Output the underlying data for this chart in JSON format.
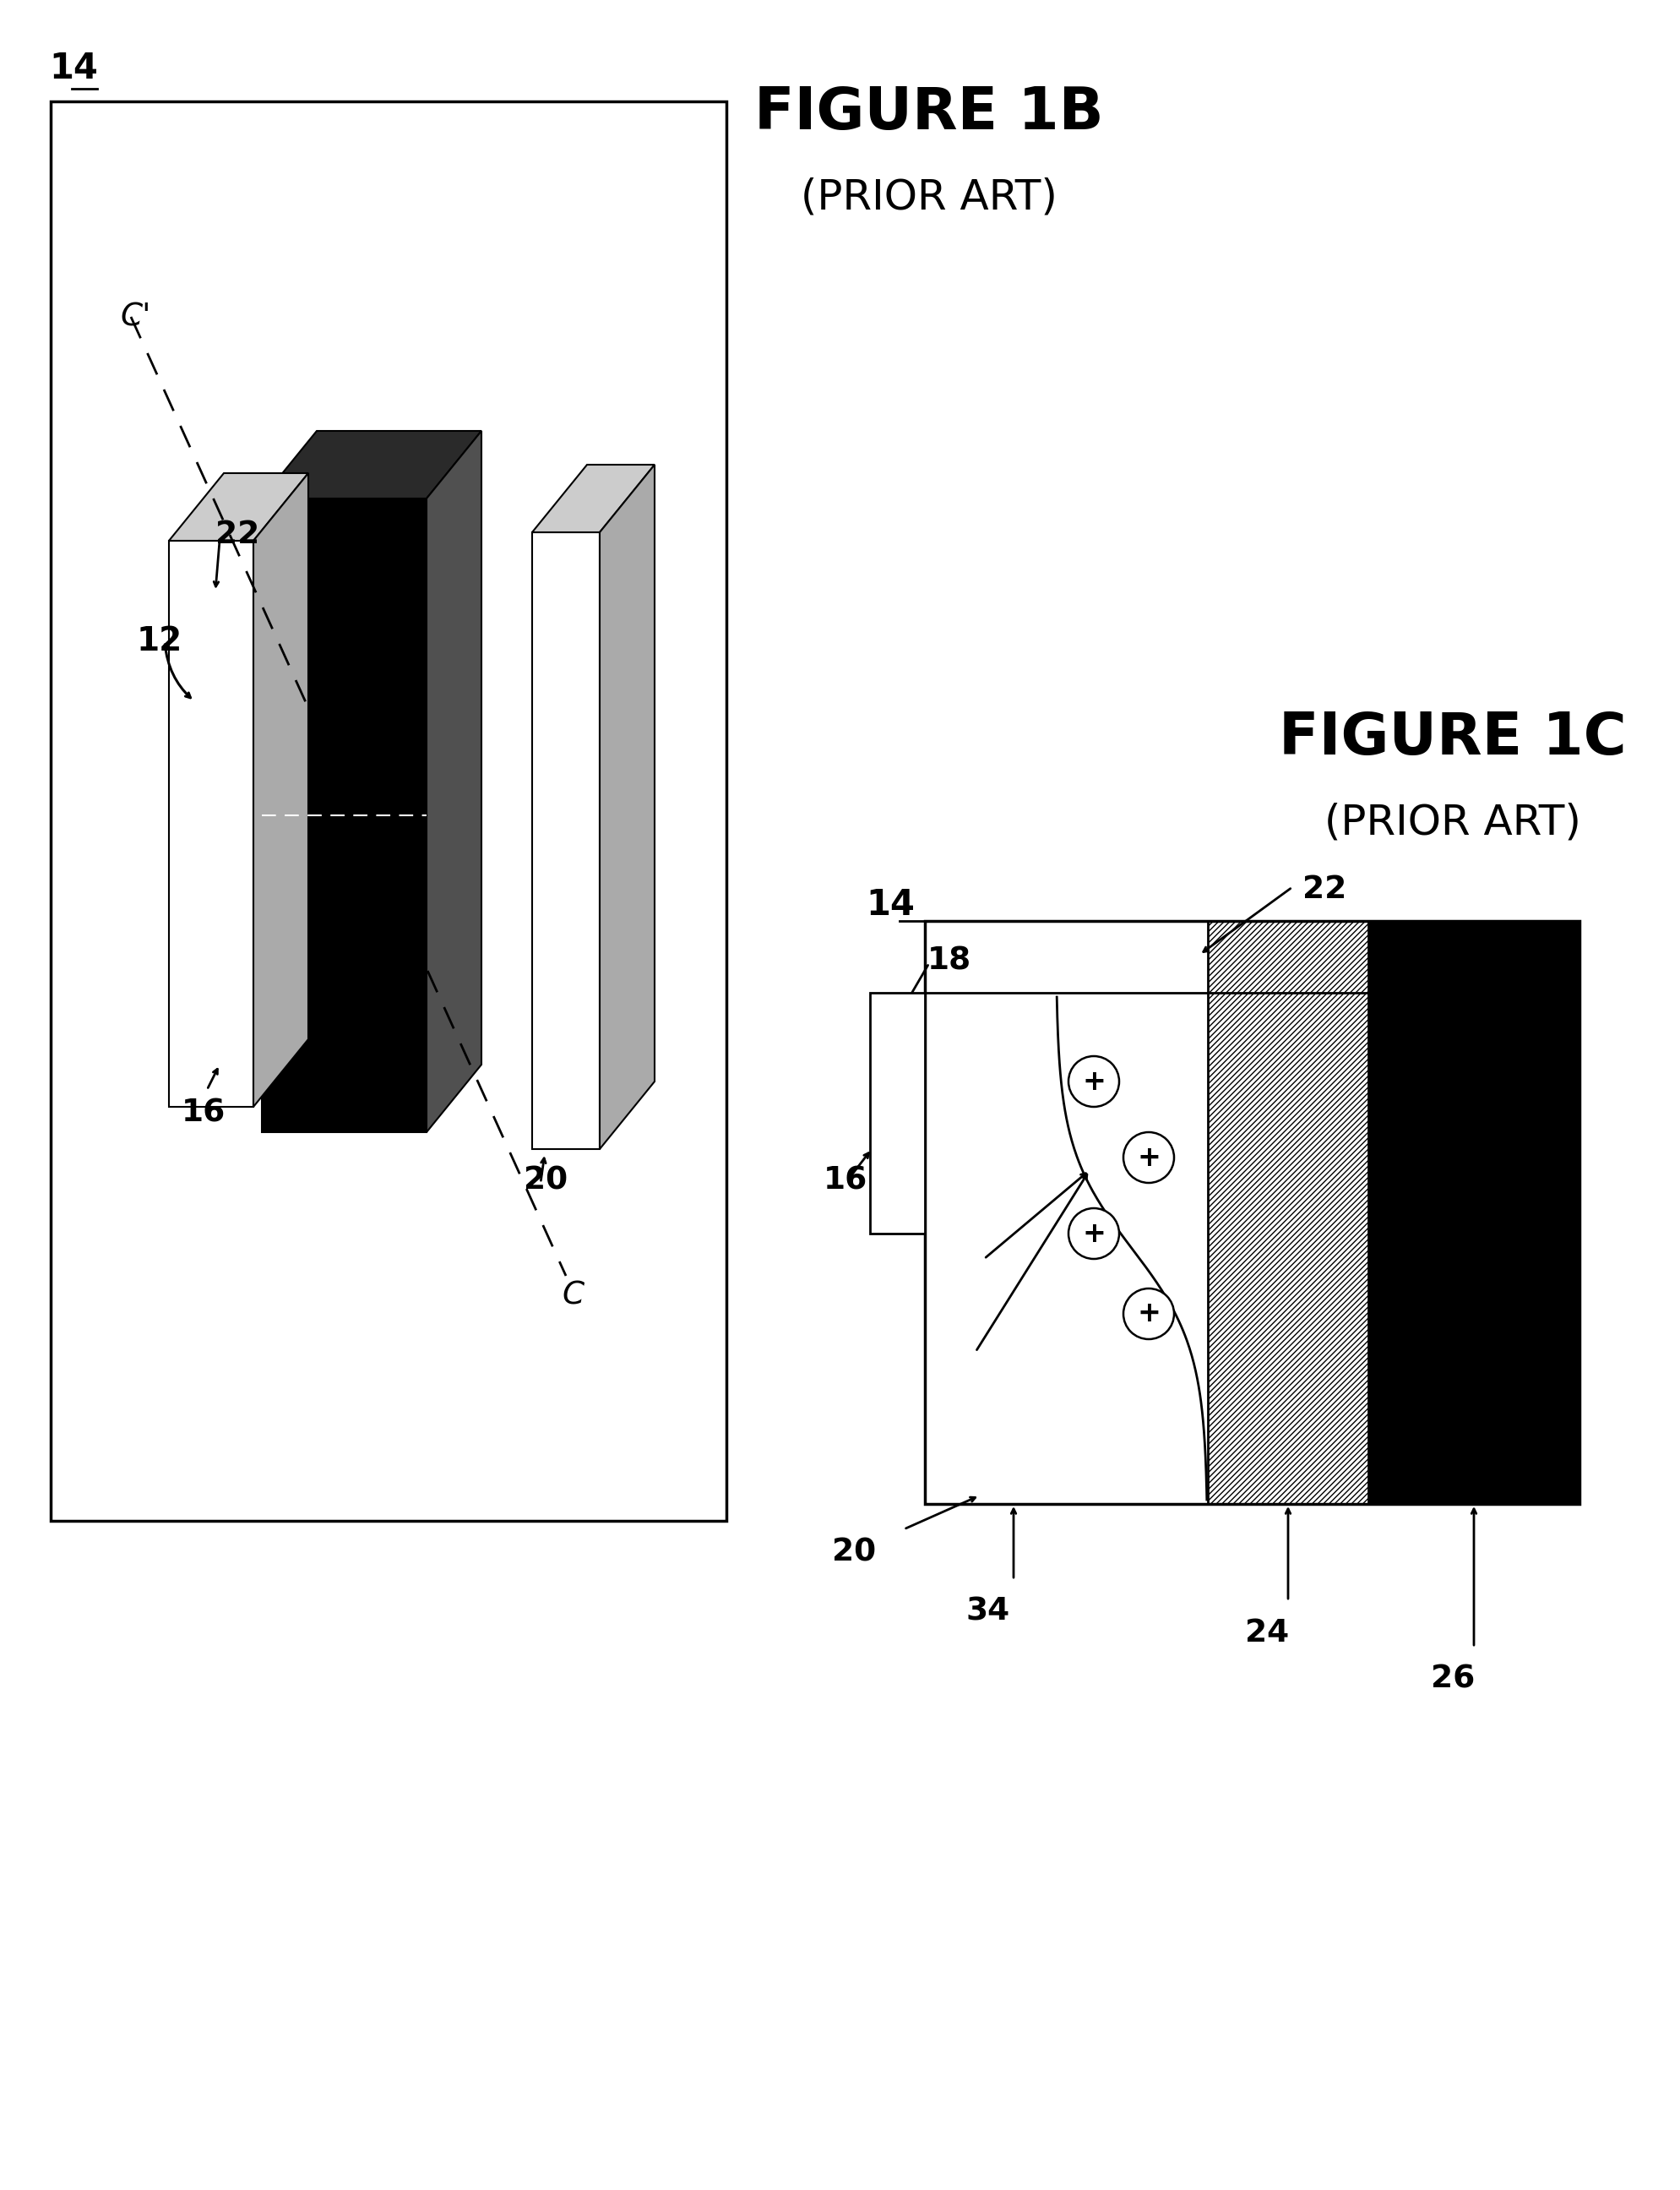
{
  "title_1b": "FIGURE 1B",
  "subtitle_1b": "(PRIOR ART)",
  "title_1c": "FIGURE 1C",
  "subtitle_1c": "(PRIOR ART)",
  "bg_color": "#ffffff",
  "label_14_top": "14",
  "label_12": "12",
  "label_22_3d": "22",
  "label_20_3d": "20",
  "label_16_3d": "16",
  "label_C": "C",
  "label_Cprime": "C'",
  "label_14_cross": "14",
  "label_18": "18",
  "label_16_cross": "16",
  "label_22_cross": "22",
  "label_20_cross": "20",
  "label_34": "34",
  "label_24": "24",
  "label_26": "26"
}
